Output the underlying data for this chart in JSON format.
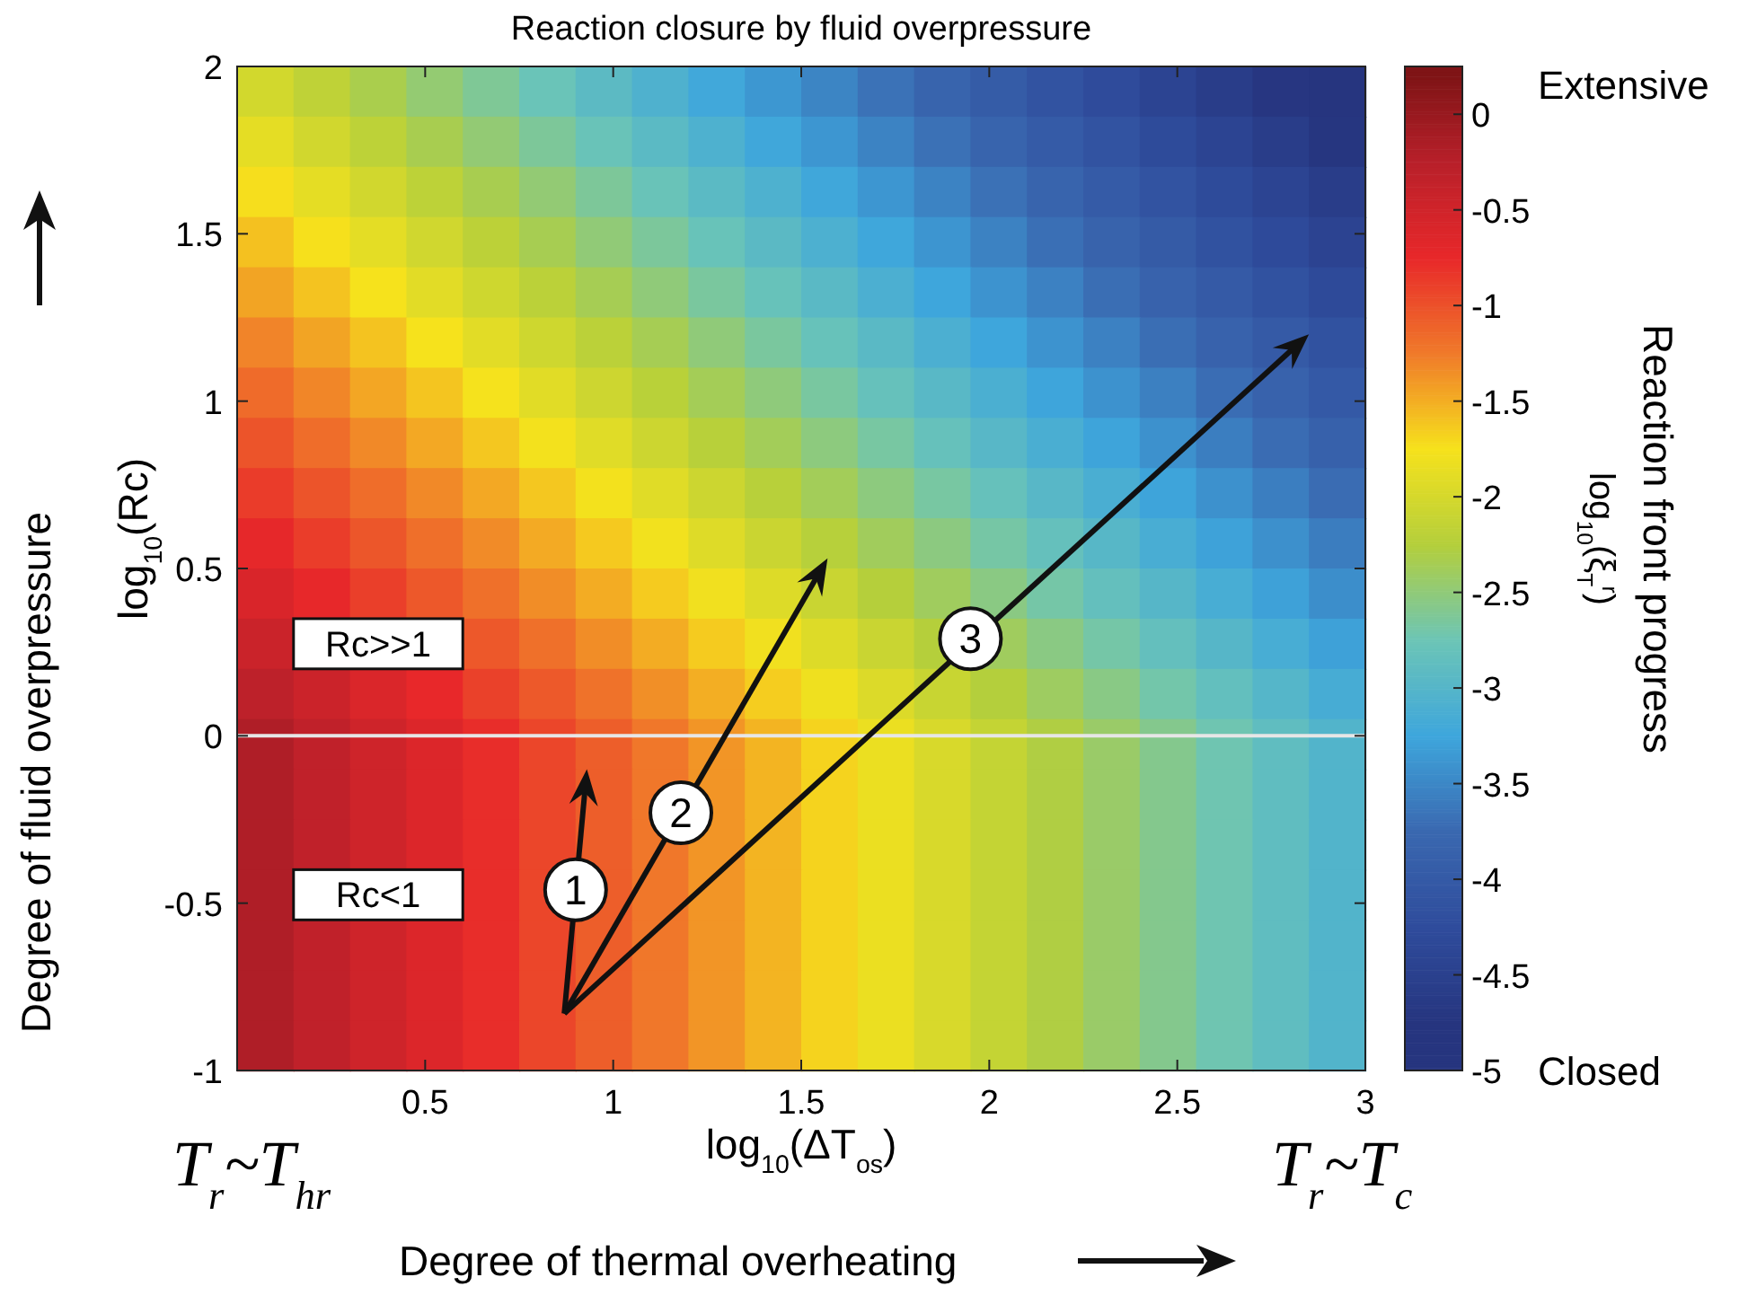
{
  "chart_data": {
    "type": "heatmap",
    "title": "Reaction closure by fluid overpressure",
    "xlabel": "log$_{10}$(ΔT$_{os}$)",
    "ylabel": "log$_{10}$(Rc)",
    "clabel": "Reaction front progress",
    "x": [
      0.075,
      0.225,
      0.375,
      0.525,
      0.675,
      0.825,
      0.975,
      1.125,
      1.275,
      1.425,
      1.575,
      1.725,
      1.875,
      2.025,
      2.175,
      2.325,
      2.475,
      2.625,
      2.775,
      2.925
    ],
    "y": [
      1.925,
      1.775,
      1.625,
      1.475,
      1.325,
      1.175,
      1.025,
      0.875,
      0.725,
      0.575,
      0.425,
      0.275,
      0.125,
      -0.025,
      -0.175,
      -0.325,
      -0.475,
      -0.625,
      -0.775,
      -0.925
    ],
    "xlim": [
      0,
      3
    ],
    "xticks": [
      0.5,
      1,
      1.5,
      2,
      2.5,
      3
    ],
    "ylim": [
      -1,
      2
    ],
    "yticks": [
      -1,
      -0.5,
      0,
      0.5,
      1,
      1.5,
      2
    ],
    "clim": [
      -5,
      0.25
    ],
    "cticks": [
      -5,
      -4.5,
      -4,
      -3.5,
      -3,
      -2.5,
      -2,
      -1.5,
      -1,
      -0.5,
      0
    ],
    "cells": [
      [
        -2.02,
        -2.17,
        -2.32,
        -2.47,
        -2.62,
        -2.77,
        -2.92,
        -3.07,
        -3.22,
        -3.37,
        -3.52,
        -3.67,
        -3.82,
        -3.97,
        -4.12,
        -4.27,
        -4.42,
        -4.57,
        -4.72,
        -4.87
      ],
      [
        -1.88,
        -2.03,
        -2.18,
        -2.33,
        -2.48,
        -2.63,
        -2.78,
        -2.93,
        -3.08,
        -3.23,
        -3.38,
        -3.53,
        -3.68,
        -3.83,
        -3.98,
        -4.13,
        -4.28,
        -4.43,
        -4.58,
        -4.73
      ],
      [
        -1.73,
        -1.88,
        -2.03,
        -2.18,
        -2.33,
        -2.48,
        -2.63,
        -2.78,
        -2.93,
        -3.08,
        -3.23,
        -3.38,
        -3.53,
        -3.68,
        -3.83,
        -3.98,
        -4.13,
        -4.28,
        -4.43,
        -4.58
      ],
      [
        -1.59,
        -1.74,
        -1.89,
        -2.04,
        -2.19,
        -2.34,
        -2.49,
        -2.64,
        -2.79,
        -2.94,
        -3.09,
        -3.24,
        -3.39,
        -3.54,
        -3.69,
        -3.84,
        -3.99,
        -4.14,
        -4.29,
        -4.44
      ],
      [
        -1.45,
        -1.6,
        -1.75,
        -1.9,
        -2.05,
        -2.2,
        -2.35,
        -2.5,
        -2.65,
        -2.8,
        -2.95,
        -3.1,
        -3.25,
        -3.4,
        -3.55,
        -3.7,
        -3.85,
        -4,
        -4.15,
        -4.3
      ],
      [
        -1.3,
        -1.45,
        -1.6,
        -1.75,
        -1.9,
        -2.05,
        -2.2,
        -2.35,
        -2.5,
        -2.65,
        -2.8,
        -2.95,
        -3.1,
        -3.25,
        -3.4,
        -3.55,
        -3.7,
        -3.85,
        -4,
        -4.15
      ],
      [
        -1.16,
        -1.31,
        -1.46,
        -1.61,
        -1.76,
        -1.91,
        -2.06,
        -2.21,
        -2.36,
        -2.51,
        -2.66,
        -2.81,
        -2.96,
        -3.11,
        -3.26,
        -3.41,
        -3.56,
        -3.71,
        -3.86,
        -4.01
      ],
      [
        -1.02,
        -1.17,
        -1.32,
        -1.47,
        -1.62,
        -1.77,
        -1.92,
        -2.07,
        -2.22,
        -2.37,
        -2.52,
        -2.67,
        -2.82,
        -2.97,
        -3.12,
        -3.27,
        -3.42,
        -3.57,
        -3.72,
        -3.87
      ],
      [
        -0.87,
        -1.02,
        -1.17,
        -1.32,
        -1.47,
        -1.62,
        -1.77,
        -1.92,
        -2.07,
        -2.22,
        -2.37,
        -2.52,
        -2.67,
        -2.82,
        -2.97,
        -3.12,
        -3.27,
        -3.42,
        -3.57,
        -3.72
      ],
      [
        -0.73,
        -0.88,
        -1.03,
        -1.18,
        -1.33,
        -1.48,
        -1.63,
        -1.78,
        -1.93,
        -2.08,
        -2.23,
        -2.38,
        -2.53,
        -2.68,
        -2.83,
        -2.98,
        -3.13,
        -3.28,
        -3.43,
        -3.58
      ],
      [
        -0.59,
        -0.74,
        -0.89,
        -1.04,
        -1.19,
        -1.34,
        -1.49,
        -1.64,
        -1.79,
        -1.94,
        -2.09,
        -2.24,
        -2.39,
        -2.54,
        -2.69,
        -2.84,
        -2.99,
        -3.14,
        -3.29,
        -3.44
      ],
      [
        -0.44,
        null,
        null,
        null,
        -1.04,
        -1.19,
        -1.34,
        -1.49,
        -1.64,
        -1.79,
        -1.94,
        -2.09,
        -2.24,
        -2.39,
        -2.54,
        -2.69,
        -2.84,
        -2.99,
        -3.14,
        -3.29
      ],
      [
        -0.3,
        -0.45,
        -0.6,
        -0.75,
        -0.9,
        -1.05,
        -1.2,
        -1.35,
        -1.5,
        -1.65,
        -1.8,
        -1.95,
        -2.1,
        -2.25,
        -2.4,
        -2.55,
        -2.7,
        -2.85,
        -3,
        -3.15
      ],
      [
        -0.18,
        -0.33,
        -0.48,
        -0.63,
        -0.78,
        -0.93,
        -1.08,
        -1.23,
        -1.38,
        -1.53,
        -1.68,
        -1.83,
        -1.98,
        -2.13,
        -2.28,
        -2.43,
        -2.58,
        -2.73,
        -2.88,
        -3.03
      ],
      [
        -0.18,
        -0.33,
        -0.48,
        -0.63,
        -0.78,
        -0.93,
        -1.08,
        -1.23,
        -1.38,
        -1.53,
        -1.68,
        -1.83,
        -1.98,
        -2.13,
        -2.28,
        -2.43,
        -2.58,
        -2.73,
        -2.88,
        -3.03
      ],
      [
        -0.18,
        -0.33,
        -0.48,
        -0.63,
        -0.78,
        -0.93,
        -1.08,
        -1.23,
        -1.38,
        -1.53,
        -1.68,
        -1.83,
        -1.98,
        -2.13,
        -2.28,
        -2.43,
        -2.58,
        -2.73,
        -2.88,
        -3.03
      ],
      [
        -0.18,
        null,
        null,
        null,
        -0.78,
        -0.93,
        -1.08,
        -1.23,
        -1.38,
        -1.53,
        -1.68,
        -1.83,
        -1.98,
        -2.13,
        -2.28,
        -2.43,
        -2.58,
        -2.73,
        -2.88,
        -3.03
      ],
      [
        -0.18,
        -0.33,
        -0.48,
        -0.63,
        -0.78,
        -0.93,
        -1.08,
        -1.23,
        -1.38,
        -1.53,
        -1.68,
        -1.83,
        -1.98,
        -2.13,
        -2.28,
        -2.43,
        -2.58,
        -2.73,
        -2.88,
        -3.03
      ],
      [
        -0.18,
        -0.33,
        -0.48,
        -0.63,
        -0.78,
        -0.93,
        -1.08,
        -1.23,
        -1.38,
        -1.53,
        -1.68,
        -1.83,
        -1.98,
        -2.13,
        -2.28,
        -2.43,
        -2.58,
        -2.73,
        -2.88,
        -3.03
      ],
      [
        -0.18,
        -0.33,
        -0.48,
        -0.63,
        -0.78,
        -0.93,
        -1.08,
        -1.23,
        -1.38,
        -1.53,
        -1.68,
        -1.83,
        -1.98,
        -2.13,
        -2.28,
        -2.43,
        -2.58,
        -2.73,
        -2.88,
        -3.03
      ]
    ],
    "ref_lines": [
      {
        "axis": "y",
        "value": 0,
        "color": "#e6e6e6"
      }
    ],
    "annotations": [
      "Extensive",
      "Closed",
      "log$_{10}$(ξ$_{T}$$^{r}$)",
      "T$_{r}$~T$_{hr}$",
      "T$_{r}$~T$_{c}$",
      "Degree of thermal overheating",
      "Degree of fluid overpressure",
      "Rc>>1",
      "Rc<1",
      "1",
      "2",
      "3"
    ]
  }
}
